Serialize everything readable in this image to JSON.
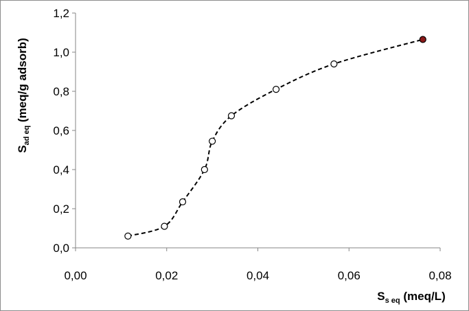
{
  "chart_data": {
    "type": "scatter",
    "xlabel": {
      "main": "S",
      "sub": "s eq",
      "rest": " (meq/L)"
    },
    "ylabel": {
      "main": "S",
      "sub": "ad eq",
      "rest": " (meq/g adsorb)"
    },
    "xlim": [
      0,
      0.08
    ],
    "ylim": [
      0,
      1.2
    ],
    "x_ticks": [
      "0,00",
      "0,02",
      "0,04",
      "0,06",
      "0,08"
    ],
    "y_ticks": [
      "0,0",
      "0,2",
      "0,4",
      "0,6",
      "0,8",
      "1,0",
      "1,2"
    ],
    "grid": false,
    "legend": "none",
    "series": [
      {
        "marker": "open-circle",
        "line": "dashed",
        "x": [
          0.0115,
          0.0195,
          0.0235,
          0.0283,
          0.03,
          0.0342,
          0.044,
          0.0567
        ],
        "y": [
          0.06,
          0.11,
          0.235,
          0.4,
          0.545,
          0.675,
          0.81,
          0.94
        ]
      },
      {
        "marker": "filled-circle",
        "x": [
          0.0762
        ],
        "y": [
          1.065
        ]
      }
    ],
    "colors": {
      "marker_fill_highlight": "#8b1a1a",
      "line": "#000000",
      "axis": "#868686"
    }
  }
}
